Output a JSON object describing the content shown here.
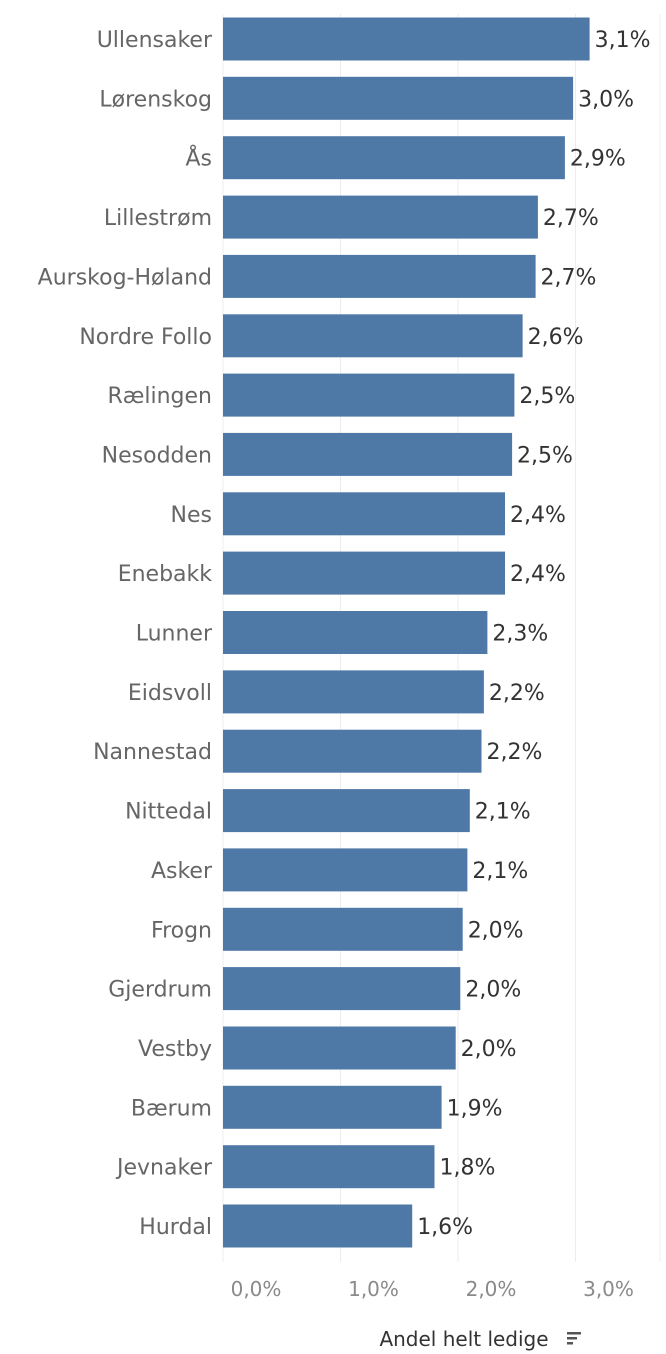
{
  "chart_data": {
    "type": "bar",
    "orientation": "horizontal",
    "categories": [
      "Ullensaker",
      "Lørenskog",
      "Ås",
      "Lillestrøm",
      "Aurskog-Høland",
      "Nordre Follo",
      "Rælingen",
      "Nesodden",
      "Nes",
      "Enebakk",
      "Lunner",
      "Eidsvoll",
      "Nannestad",
      "Nittedal",
      "Asker",
      "Frogn",
      "Gjerdrum",
      "Vestby",
      "Bærum",
      "Jevnaker",
      "Hurdal"
    ],
    "values": [
      3.12,
      2.98,
      2.91,
      2.68,
      2.66,
      2.55,
      2.48,
      2.46,
      2.4,
      2.4,
      2.25,
      2.22,
      2.2,
      2.1,
      2.08,
      2.04,
      2.02,
      1.98,
      1.86,
      1.8,
      1.61
    ],
    "value_labels": [
      "3,1%",
      "3,0%",
      "2,9%",
      "2,7%",
      "2,7%",
      "2,6%",
      "2,5%",
      "2,5%",
      "2,4%",
      "2,4%",
      "2,3%",
      "2,2%",
      "2,2%",
      "2,1%",
      "2,1%",
      "2,0%",
      "2,0%",
      "2,0%",
      "1,9%",
      "1,8%",
      "1,6%"
    ],
    "x_ticks": [
      {
        "value": 0,
        "label": "0,0%"
      },
      {
        "value": 1,
        "label": "1,0%"
      },
      {
        "value": 2,
        "label": "2,0%"
      },
      {
        "value": 3,
        "label": "3,0%"
      }
    ],
    "xlim": [
      0,
      3.8
    ],
    "xlabel": "Andel helt ledige",
    "title": "",
    "grid": "vertical",
    "bar_color": "#4e79a7",
    "sort_icon": "sort-descending-icon"
  }
}
